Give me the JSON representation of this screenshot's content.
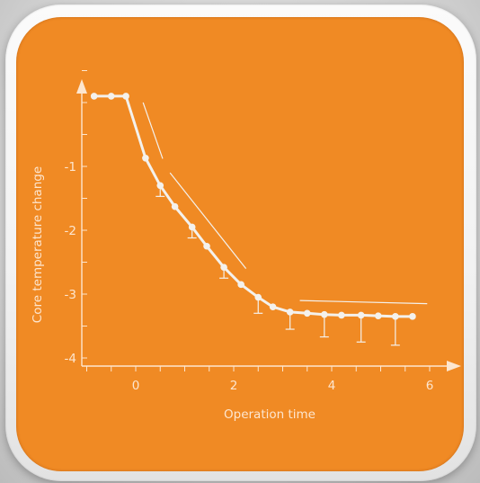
{
  "colors": {
    "background": "#d9d9d9",
    "card": "#f08a24",
    "frame": "#f7f7f7",
    "ink": "#fde6cf",
    "series": "#f4f1ec"
  },
  "chart_data": {
    "type": "line",
    "title": "",
    "xlabel": "Operation time",
    "ylabel": "Core temperature change",
    "xlim": [
      -1,
      6.6
    ],
    "ylim": [
      -4.1,
      1.3
    ],
    "x_ticks": [
      0,
      2,
      4,
      6
    ],
    "x_tick_labels": [
      "0",
      "2",
      "4",
      "6"
    ],
    "y_ticks": [
      -1,
      -2,
      -3,
      -4
    ],
    "y_tick_labels": [
      "-1",
      "-2",
      "-3",
      "-4"
    ],
    "grid": false,
    "series": [
      {
        "x": [
          -0.85,
          -0.5,
          -0.2,
          0.2,
          0.5,
          0.8,
          1.15,
          1.45,
          1.8,
          2.15,
          2.5,
          2.8,
          3.15,
          3.5,
          3.85,
          4.2,
          4.6,
          4.95,
          5.3,
          5.65
        ],
        "y": [
          0.1,
          0.1,
          0.1,
          -0.87,
          -1.3,
          -1.63,
          -1.95,
          -2.25,
          -2.58,
          -2.85,
          -3.05,
          -3.2,
          -3.28,
          -3.3,
          -3.32,
          -3.33,
          -3.33,
          -3.34,
          -3.35,
          -3.35
        ],
        "error_low": [
          0,
          0,
          0,
          0,
          0.17,
          0,
          0.17,
          0,
          0.17,
          0,
          0.25,
          0,
          0.27,
          0,
          0.35,
          0,
          0.42,
          0,
          0.45,
          0
        ]
      }
    ],
    "trend_lines": [
      {
        "x": [
          0.15,
          0.55
        ],
        "y": [
          0.0,
          -0.88
        ]
      },
      {
        "x": [
          0.7,
          2.25
        ],
        "y": [
          -1.1,
          -2.6
        ]
      },
      {
        "x": [
          3.35,
          5.95
        ],
        "y": [
          -3.1,
          -3.15
        ]
      }
    ]
  }
}
